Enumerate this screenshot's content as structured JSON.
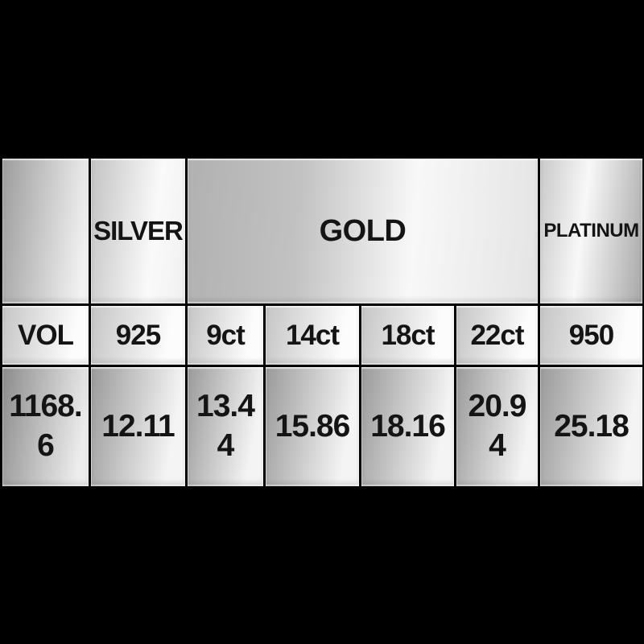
{
  "colors": {
    "background": "#000000",
    "cell_text": "#141414",
    "metal_dark": "#9a9a9a",
    "metal_light": "#f8f8f8"
  },
  "table": {
    "header_groups": [
      {
        "label": ""
      },
      {
        "label": "SILVER"
      },
      {
        "label": "GOLD",
        "span": 4
      },
      {
        "label": "PLATINUM"
      }
    ],
    "columns": [
      {
        "key": "VOL",
        "value": "1168.6",
        "display": "1168.\n6"
      },
      {
        "key": "925",
        "value": "12.11",
        "display": "12.11"
      },
      {
        "key": "9ct",
        "value": "13.44",
        "display": "13.4\n4"
      },
      {
        "key": "14ct",
        "value": "15.86",
        "display": "15.86"
      },
      {
        "key": "18ct",
        "value": "18.16",
        "display": "18.16"
      },
      {
        "key": "22ct",
        "value": "20.94",
        "display": "20.9\n4"
      },
      {
        "key": "950",
        "value": "25.18",
        "display": "25.18"
      }
    ]
  },
  "chart_data": {
    "type": "table",
    "title": "Precious metal prices table",
    "merged_header": [
      {
        "label": "",
        "span": 1
      },
      {
        "label": "SILVER",
        "span": 1
      },
      {
        "label": "GOLD",
        "span": 4
      },
      {
        "label": "PLATINUM",
        "span": 1
      }
    ],
    "columns": [
      "VOL",
      "925",
      "9ct",
      "14ct",
      "18ct",
      "22ct",
      "950"
    ],
    "rows": [
      [
        1168.6,
        12.11,
        13.44,
        15.86,
        18.16,
        20.94,
        25.18
      ]
    ]
  }
}
